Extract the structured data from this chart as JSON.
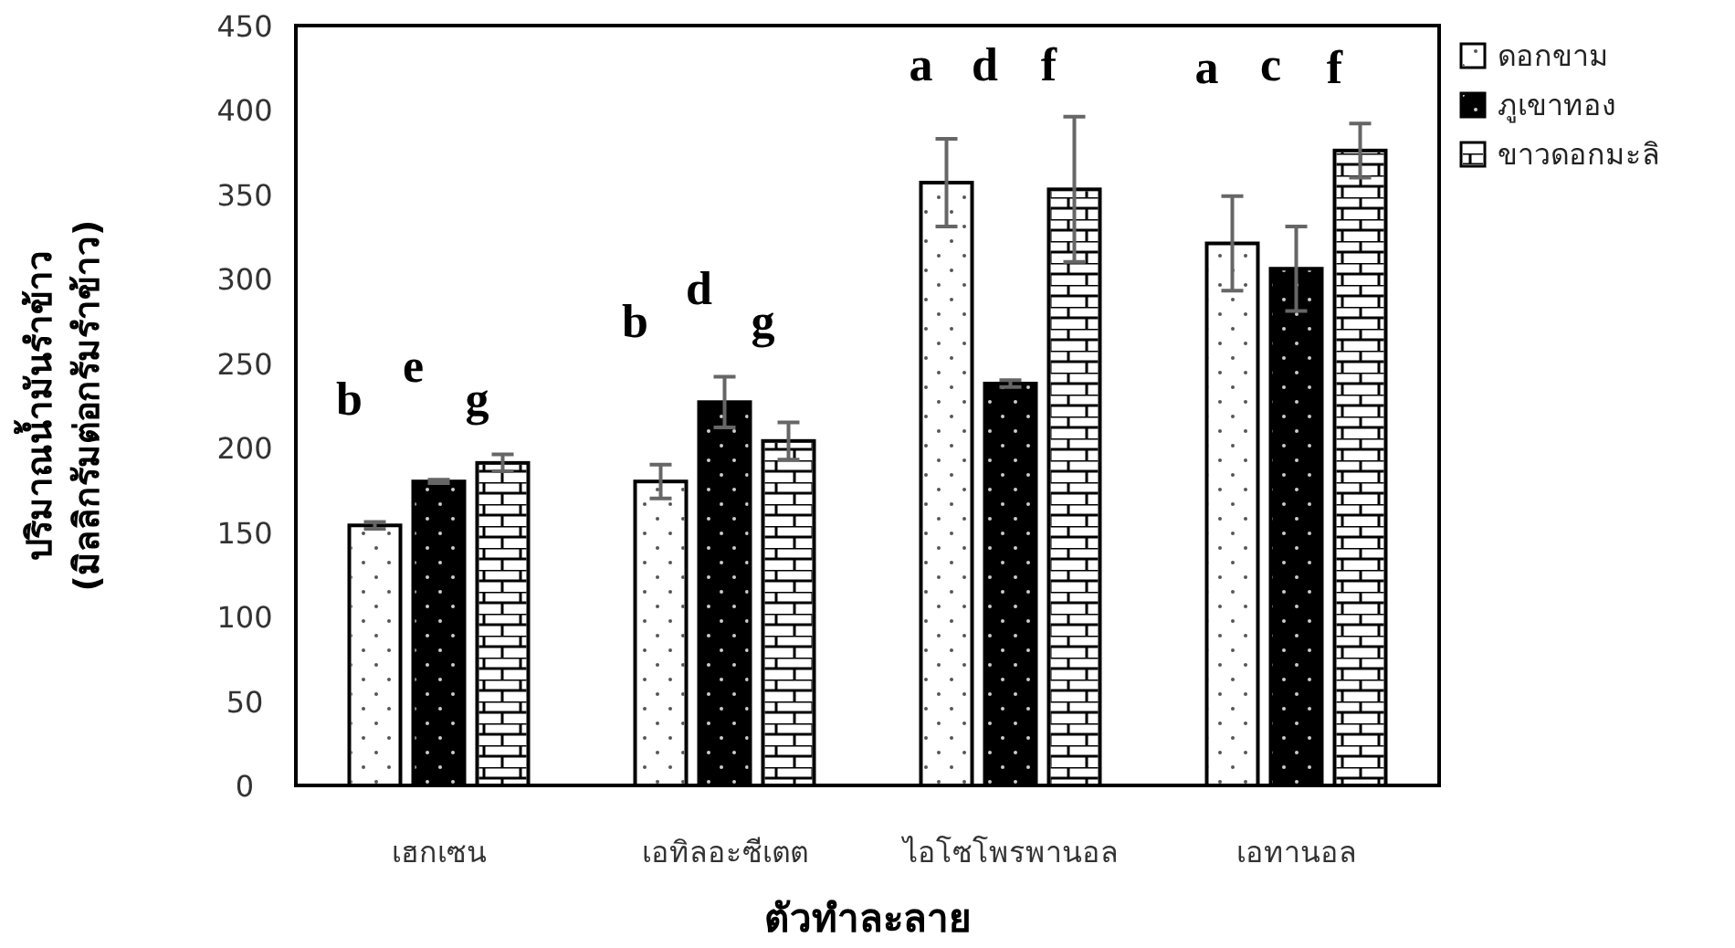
{
  "chart_data": {
    "type": "bar",
    "ylabel": "ปริมาณน้ำมันรำข้าว\n(มิลลิกรัมต่อกรัมรำข้าว)",
    "xlabel": "ตัวทำละลาย",
    "categories": [
      "เฮกเซน",
      "เอทิลอะซีเตต",
      "ไอโซโพรพานอล",
      "เอทานอล"
    ],
    "series": [
      {
        "name": "ดอกขาม",
        "color": "#ffffff",
        "values": [
          154,
          180,
          357,
          321
        ],
        "errors": [
          2,
          10,
          26,
          28
        ]
      },
      {
        "name": "ภูเขาทอง",
        "color": "#000000",
        "values": [
          180,
          227,
          238,
          306
        ],
        "errors": [
          1,
          15,
          2,
          25
        ]
      },
      {
        "name": "ขาวดอกมะลิ",
        "color": "#ffffff",
        "values": [
          191,
          204,
          353,
          376
        ],
        "errors": [
          5,
          11,
          43,
          16
        ]
      }
    ],
    "ylim": [
      0,
      450
    ],
    "yticks": [
      0,
      50,
      100,
      150,
      200,
      250,
      300,
      350,
      400,
      450
    ],
    "grid": false,
    "legend": "top right",
    "annotations": [
      "b",
      "e",
      "g",
      "b",
      "d",
      "g",
      "a",
      "d",
      "f",
      "a",
      "c",
      "f"
    ]
  }
}
